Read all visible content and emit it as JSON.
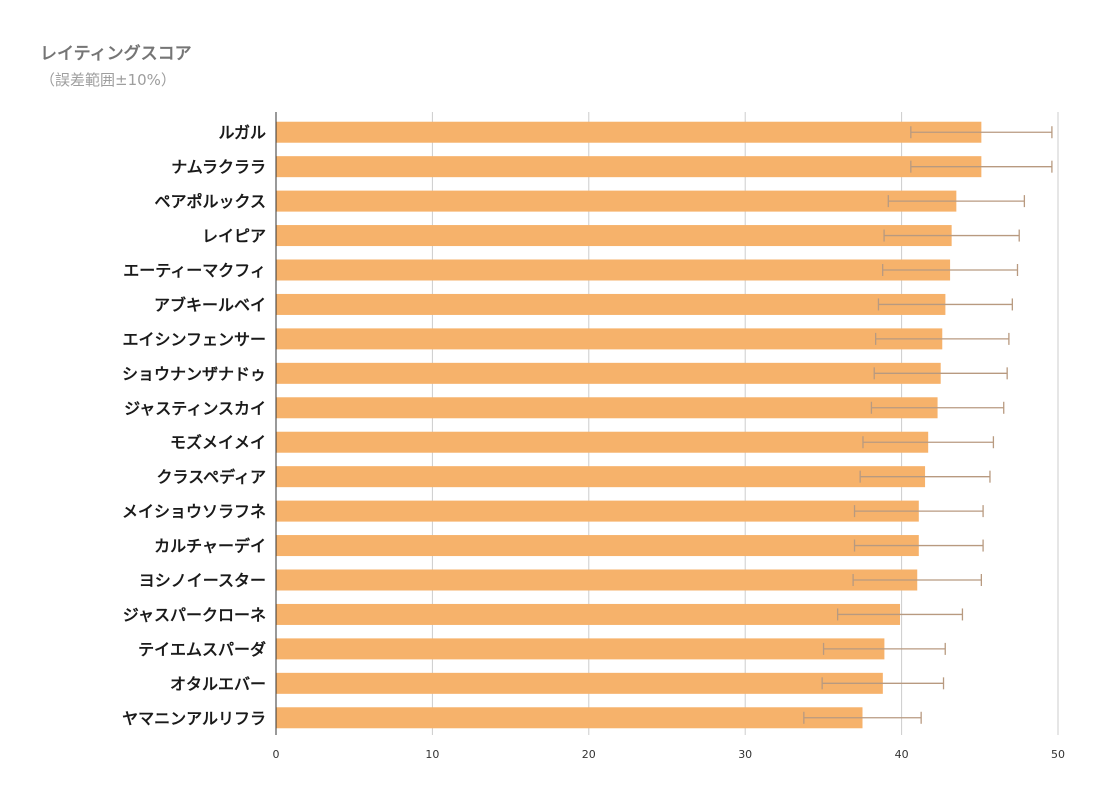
{
  "chart_data": {
    "type": "bar",
    "orientation": "horizontal",
    "title": "レイティングスコア",
    "subtitle": "（誤差範囲±10%）",
    "xlabel": "",
    "ylabel": "",
    "xlim": [
      0,
      50
    ],
    "x_ticks": [
      0,
      10,
      20,
      30,
      40,
      50
    ],
    "grid": true,
    "legend": "none",
    "error_bars": "±10%",
    "categories": [
      "ルガル",
      "ナムラクララ",
      "ペアポルックス",
      "レイピア",
      "エーティーマクフィ",
      "アブキールベイ",
      "エイシンフェンサー",
      "ショウナンザナドゥ",
      "ジャスティンスカイ",
      "モズメイメイ",
      "クラスペディア",
      "メイショウソラフネ",
      "カルチャーデイ",
      "ヨシノイースター",
      "ジャスパークローネ",
      "テイエムスパーダ",
      "オタルエバー",
      "ヤマニンアルリフラ"
    ],
    "values": [
      45.1,
      45.1,
      43.5,
      43.2,
      43.1,
      42.8,
      42.6,
      42.5,
      42.3,
      41.7,
      41.5,
      41.1,
      41.1,
      41.0,
      39.9,
      38.9,
      38.8,
      37.5
    ],
    "colors": {
      "bar": "#f6b26b",
      "error_bar": "#b89a80",
      "grid": "#cccccc",
      "axis": "#333333"
    }
  }
}
